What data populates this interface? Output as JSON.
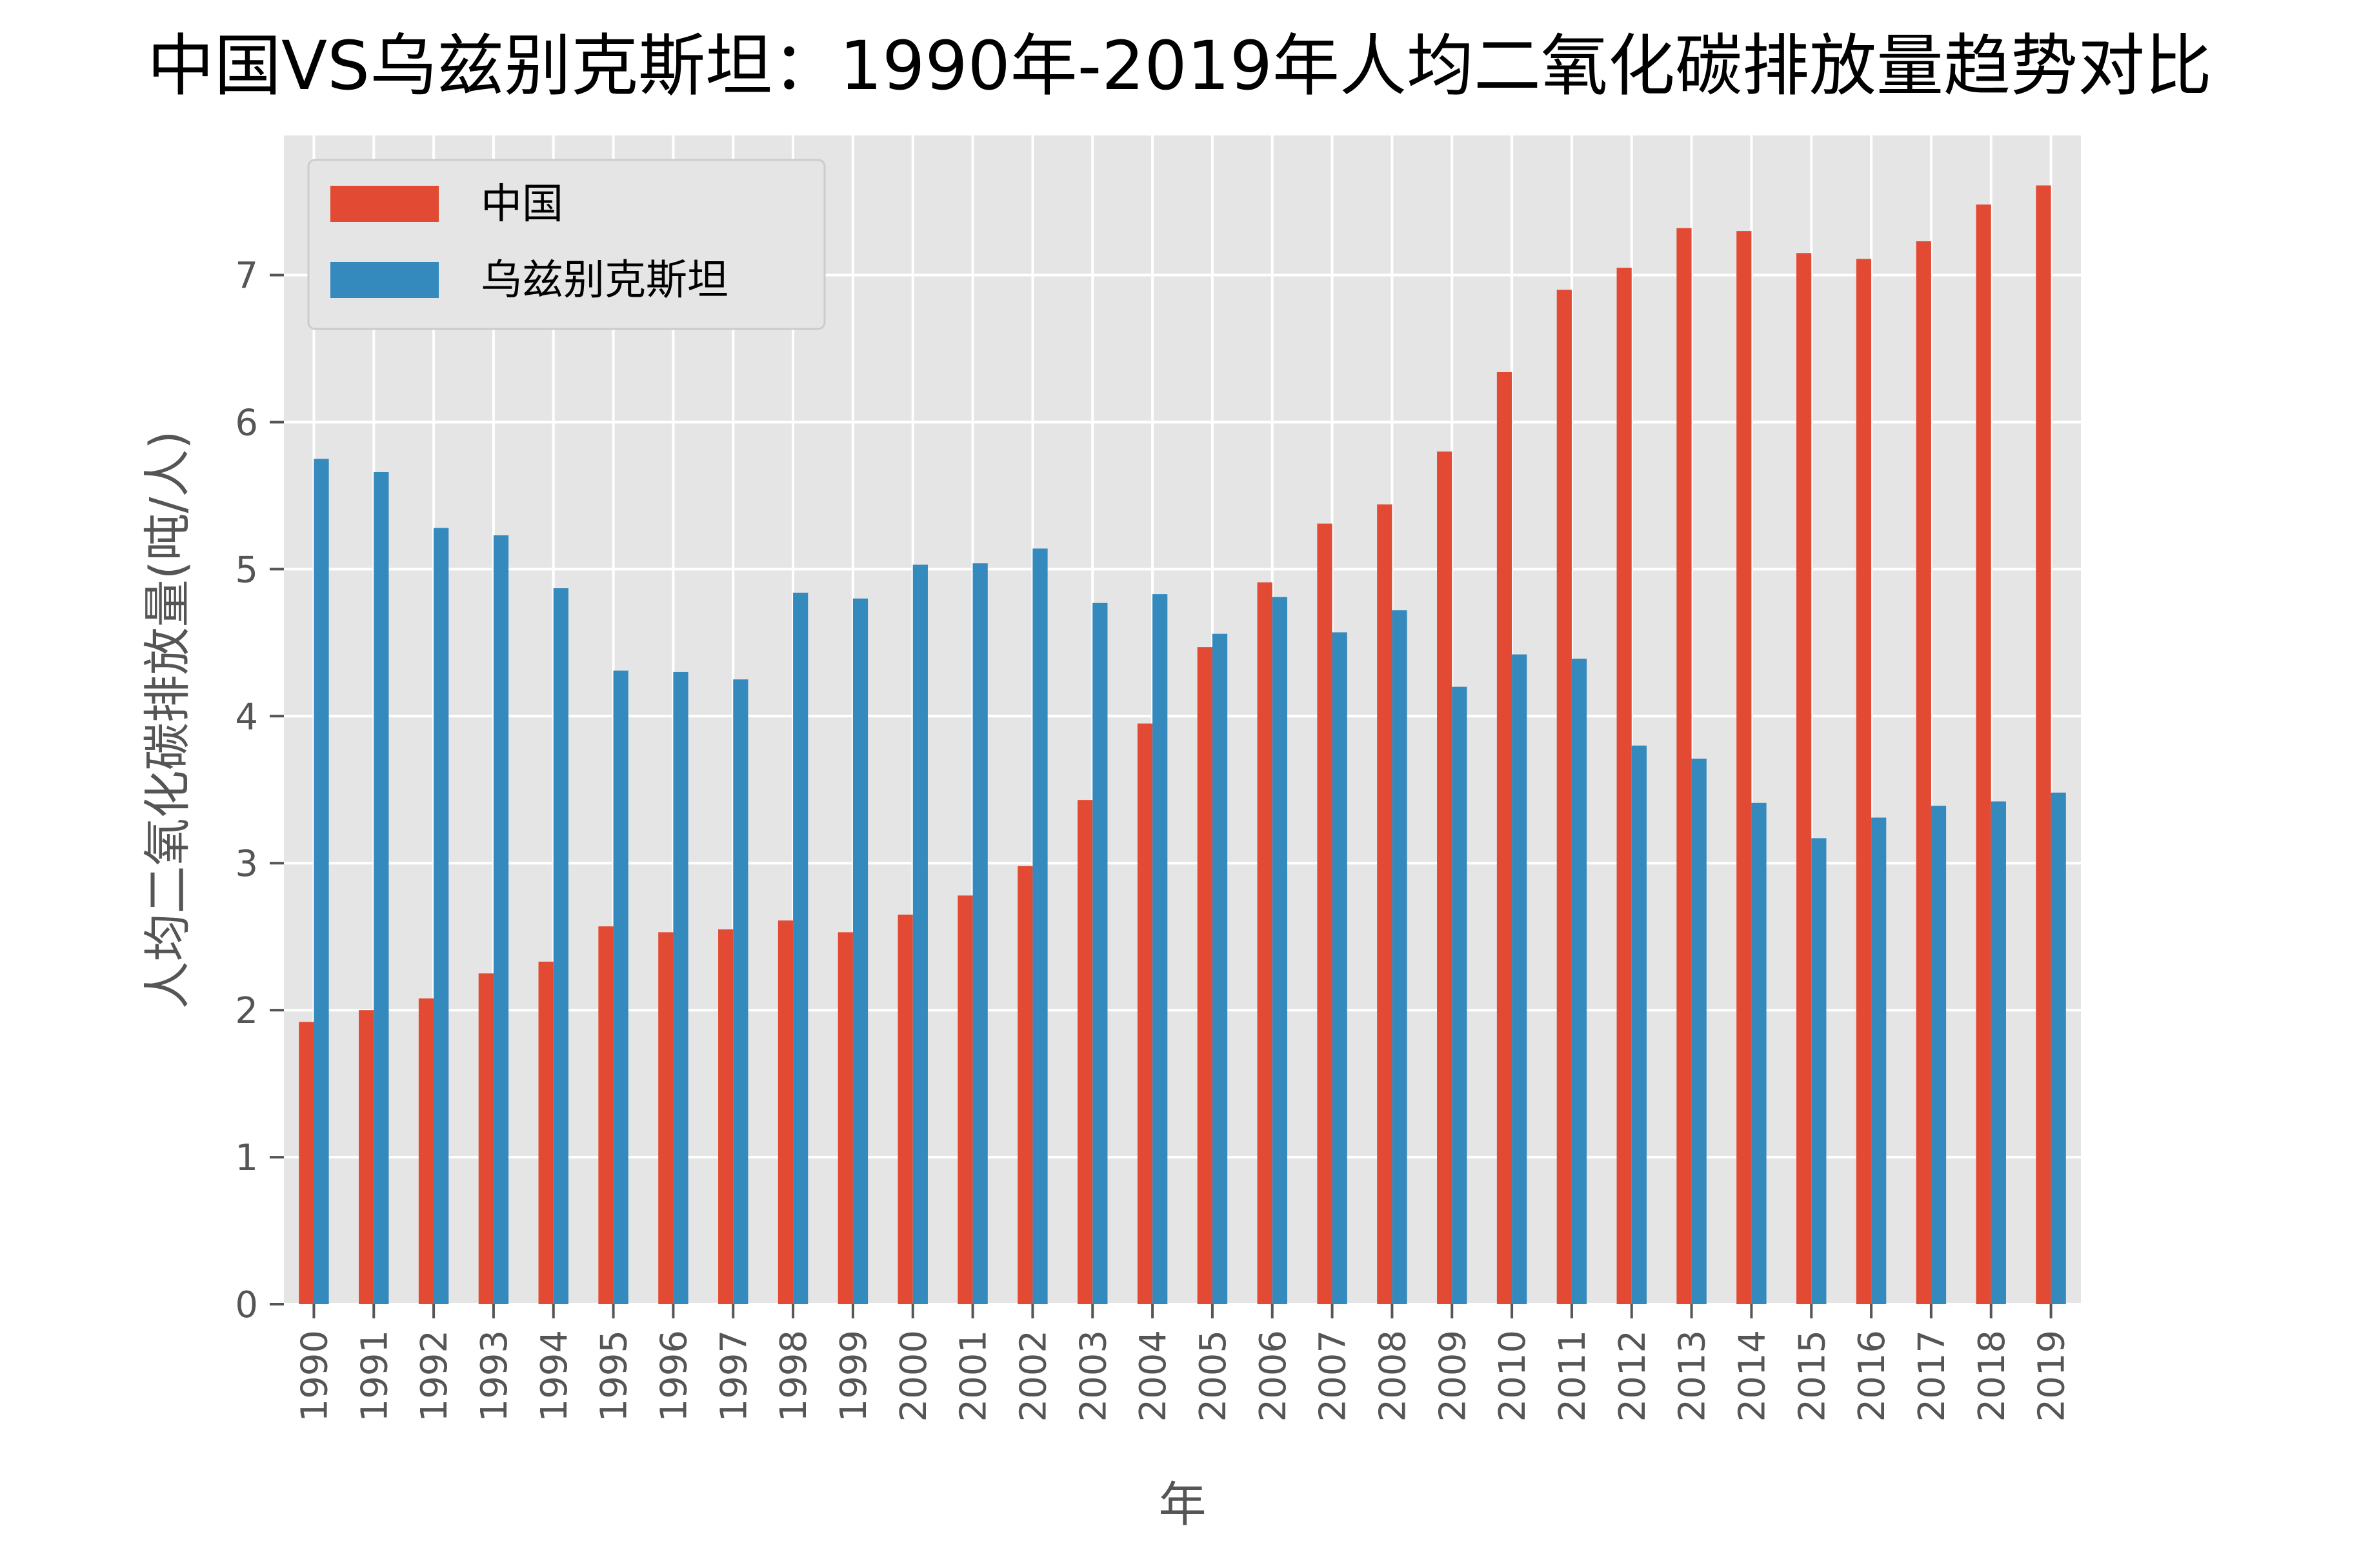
{
  "chart_data": {
    "type": "bar",
    "title": "中国VS乌兹别克斯坦：1990年-2019年人均二氧化碳排放量趋势对比",
    "xlabel": "年",
    "ylabel": "人均二氧化碳排放量(吨/人)",
    "ylim": [
      0,
      7.95
    ],
    "yticks": [
      0,
      1,
      2,
      3,
      4,
      5,
      6,
      7
    ],
    "grid": true,
    "legend_position": "top-left",
    "categories": [
      "1990",
      "1991",
      "1992",
      "1993",
      "1994",
      "1995",
      "1996",
      "1997",
      "1998",
      "1999",
      "2000",
      "2001",
      "2002",
      "2003",
      "2004",
      "2005",
      "2006",
      "2007",
      "2008",
      "2009",
      "2010",
      "2011",
      "2012",
      "2013",
      "2014",
      "2015",
      "2016",
      "2017",
      "2018",
      "2019"
    ],
    "series": [
      {
        "name": "中国",
        "color": "#E24A33",
        "values": [
          1.92,
          2.0,
          2.08,
          2.25,
          2.33,
          2.57,
          2.53,
          2.55,
          2.61,
          2.53,
          2.65,
          2.78,
          2.98,
          3.43,
          3.95,
          4.47,
          4.91,
          5.31,
          5.44,
          5.8,
          6.34,
          6.9,
          7.05,
          7.32,
          7.3,
          7.15,
          7.11,
          7.23,
          7.48,
          7.61
        ]
      },
      {
        "name": "乌兹别克斯坦",
        "color": "#348ABD",
        "values": [
          5.75,
          5.66,
          5.28,
          5.23,
          4.87,
          4.31,
          4.3,
          4.25,
          4.84,
          4.8,
          5.03,
          5.04,
          5.14,
          4.77,
          4.83,
          4.56,
          4.81,
          4.57,
          4.72,
          4.2,
          4.42,
          4.39,
          3.8,
          3.71,
          3.41,
          3.17,
          3.31,
          3.39,
          3.42,
          3.48
        ]
      }
    ]
  }
}
